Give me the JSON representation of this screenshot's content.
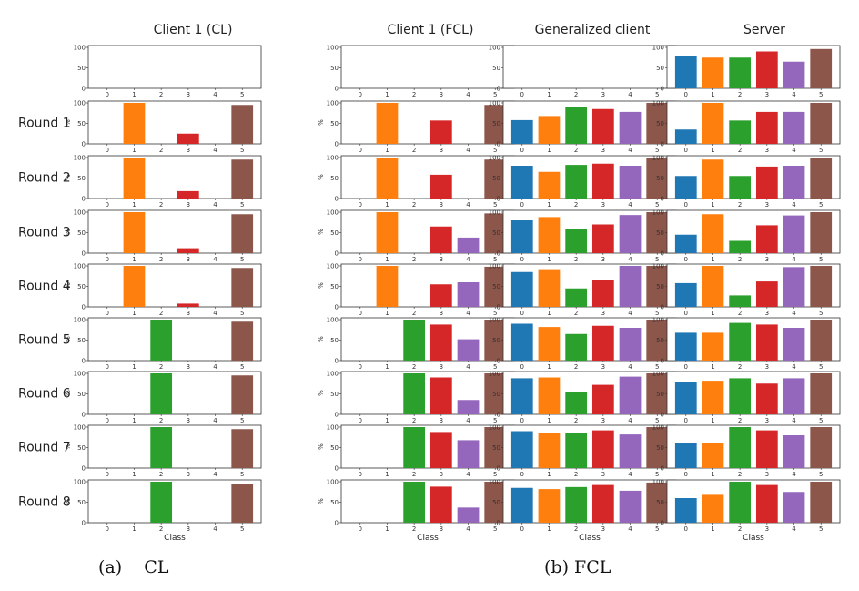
{
  "figure": {
    "column_titles": [
      "Client 1 (CL)",
      "Client 1 (FCL)",
      "Generalized client",
      "Server"
    ],
    "row_labels": [
      "",
      "Round 1",
      "Round 2",
      "Round 3",
      "Round 4",
      "Round 5",
      "Round 6",
      "Round 7",
      "Round 8"
    ],
    "captions": [
      "(a)    CL",
      "(b) FCL"
    ],
    "colors": [
      "#1f77b4",
      "#ff7f0e",
      "#2ca02c",
      "#d62728",
      "#9467bd",
      "#8c564b"
    ]
  },
  "chart_data": {
    "type": "bar",
    "categories": [
      "0",
      "1",
      "2",
      "3",
      "4",
      "5"
    ],
    "xlabel": "Class",
    "ylabel": "%",
    "ylim": [
      0,
      100
    ],
    "yticks": [
      "0",
      "50",
      "100"
    ],
    "grid": false,
    "panels": [
      {
        "column": "Client 1 (CL)",
        "rows": [
          [
            0,
            0,
            0,
            0,
            0,
            0
          ],
          [
            0,
            100,
            0,
            25,
            0,
            95
          ],
          [
            0,
            100,
            0,
            18,
            0,
            95
          ],
          [
            0,
            100,
            0,
            12,
            0,
            95
          ],
          [
            0,
            100,
            0,
            8,
            0,
            95
          ],
          [
            0,
            0,
            100,
            0,
            0,
            95
          ],
          [
            0,
            0,
            100,
            0,
            0,
            95
          ],
          [
            0,
            0,
            100,
            0,
            0,
            95
          ],
          [
            0,
            0,
            100,
            0,
            0,
            95
          ]
        ]
      },
      {
        "column": "Client 1 (FCL)",
        "rows": [
          [
            0,
            0,
            0,
            0,
            0,
            0
          ],
          [
            0,
            100,
            0,
            57,
            0,
            95
          ],
          [
            0,
            100,
            0,
            58,
            0,
            95
          ],
          [
            0,
            100,
            0,
            65,
            38,
            97
          ],
          [
            0,
            100,
            0,
            55,
            60,
            98
          ],
          [
            0,
            0,
            100,
            88,
            52,
            100
          ],
          [
            0,
            0,
            100,
            90,
            35,
            100
          ],
          [
            0,
            0,
            100,
            88,
            68,
            100
          ],
          [
            0,
            0,
            100,
            88,
            37,
            100
          ]
        ]
      },
      {
        "column": "Generalized client",
        "rows": [
          [
            0,
            0,
            0,
            0,
            0,
            0
          ],
          [
            58,
            68,
            90,
            85,
            78,
            100
          ],
          [
            80,
            65,
            82,
            85,
            80,
            100
          ],
          [
            80,
            88,
            60,
            70,
            93,
            100
          ],
          [
            85,
            92,
            45,
            65,
            100,
            100
          ],
          [
            90,
            82,
            65,
            85,
            80,
            100
          ],
          [
            88,
            90,
            55,
            72,
            92,
            100
          ],
          [
            90,
            85,
            85,
            92,
            82,
            100
          ],
          [
            85,
            82,
            87,
            92,
            78,
            98
          ]
        ]
      },
      {
        "column": "Server",
        "rows": [
          [
            78,
            75,
            75,
            90,
            65,
            96
          ],
          [
            35,
            100,
            57,
            78,
            78,
            100
          ],
          [
            55,
            95,
            55,
            78,
            80,
            100
          ],
          [
            45,
            95,
            30,
            68,
            92,
            100
          ],
          [
            58,
            100,
            28,
            62,
            97,
            100
          ],
          [
            68,
            68,
            92,
            88,
            80,
            100
          ],
          [
            80,
            82,
            88,
            75,
            88,
            100
          ],
          [
            62,
            60,
            100,
            92,
            80,
            100
          ],
          [
            60,
            68,
            100,
            92,
            75,
            100
          ]
        ]
      }
    ]
  }
}
